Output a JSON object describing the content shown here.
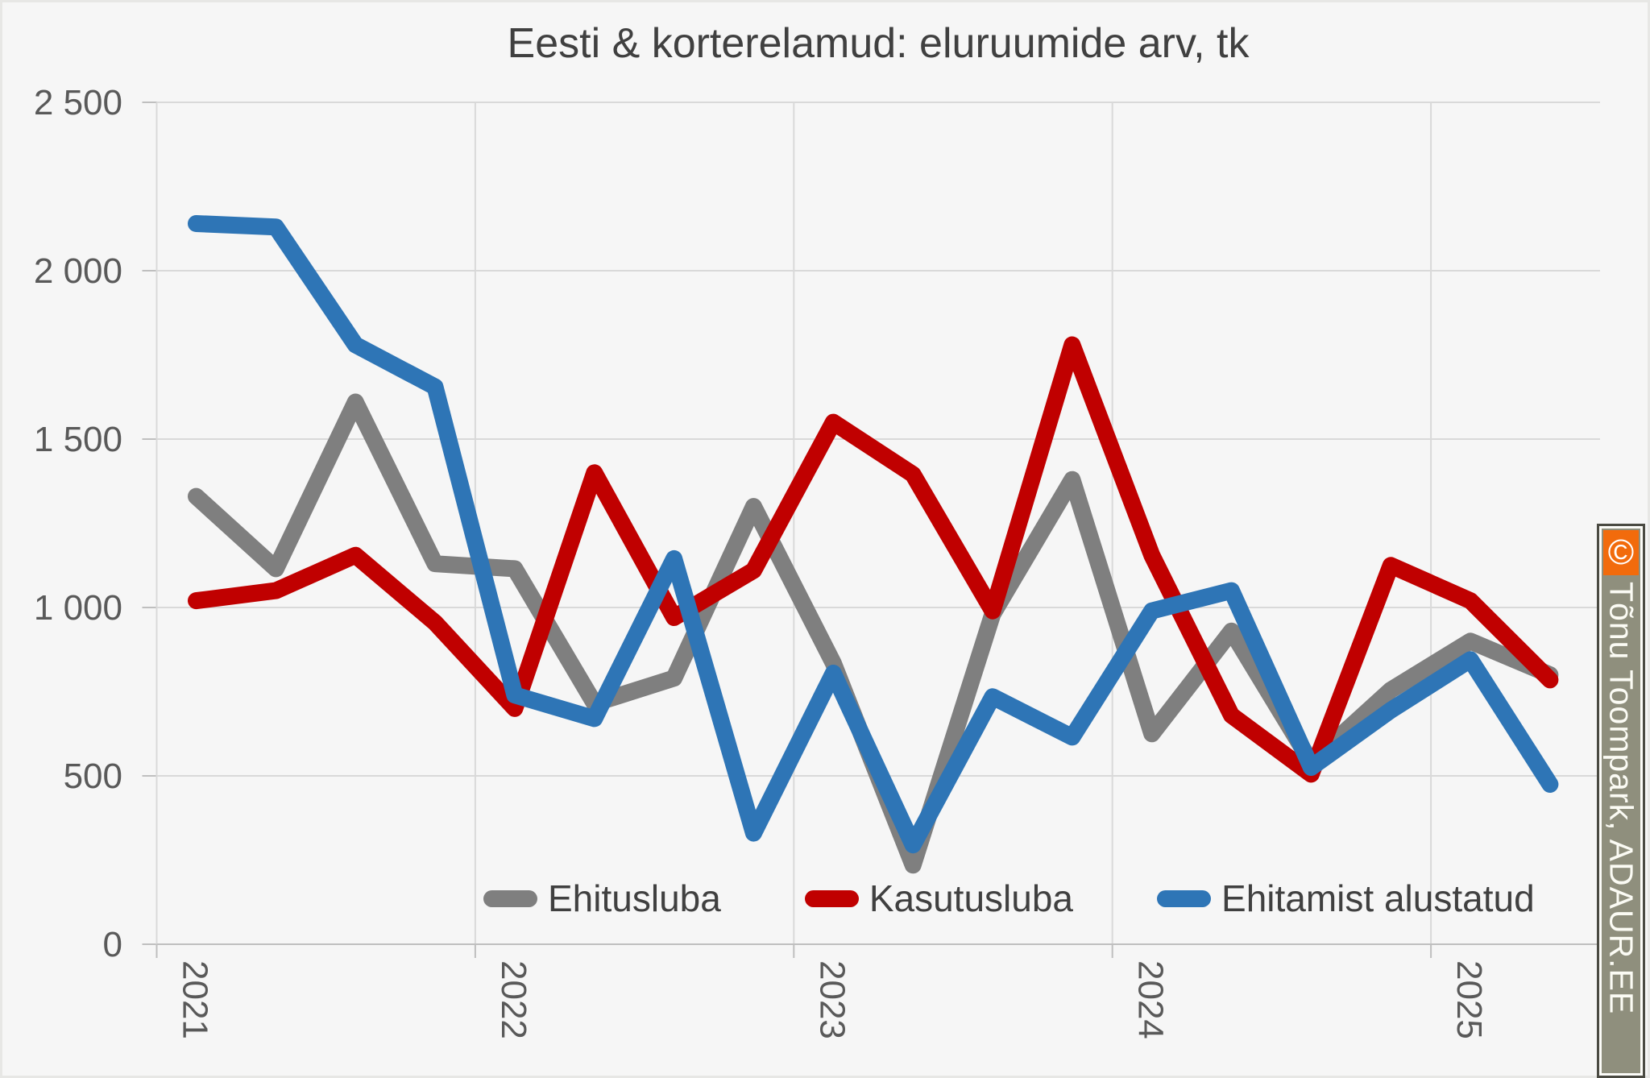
{
  "title": "Eesti & korterelamud: eluruumide arv, tk",
  "watermark": {
    "copyright": "©",
    "text": "Tõnu Toompark, ADAUR.EE",
    "orange_color": "#F26B0C",
    "strip_color": "#8F8F7D",
    "text_color": "#FBFBF4"
  },
  "chart_data": {
    "type": "line",
    "title": "Eesti & korterelamud: eluruumide arv, tk",
    "x_unit": "quarter",
    "categories": [
      "2021 Q1",
      "2021 Q2",
      "2021 Q3",
      "2021 Q4",
      "2022 Q1",
      "2022 Q2",
      "2022 Q3",
      "2022 Q4",
      "2023 Q1",
      "2023 Q2",
      "2023 Q3",
      "2023 Q4",
      "2024 Q1",
      "2024 Q2",
      "2024 Q3",
      "2024 Q4",
      "2025 Q1",
      "2025 Q2"
    ],
    "x_year_labels": [
      "2021",
      "2022",
      "2023",
      "2024",
      "2025"
    ],
    "series": [
      {
        "name": "Ehitusluba",
        "color": "#7F7F7F",
        "values": [
          1330,
          1115,
          1610,
          1130,
          1115,
          715,
          790,
          1300,
          835,
          235,
          980,
          1380,
          625,
          930,
          540,
          755,
          900,
          800
        ]
      },
      {
        "name": "Kasutusluba",
        "color": "#C00000",
        "values": [
          1020,
          1050,
          1155,
          955,
          700,
          1400,
          970,
          1110,
          1550,
          1395,
          990,
          1780,
          1155,
          680,
          505,
          1125,
          1020,
          785
        ]
      },
      {
        "name": "Ehitamist alustatud",
        "color": "#2E75B6",
        "values": [
          2140,
          2130,
          1780,
          1655,
          740,
          670,
          1145,
          330,
          805,
          295,
          735,
          615,
          990,
          1050,
          525,
          695,
          845,
          475
        ]
      }
    ],
    "ylim": [
      0,
      2500
    ],
    "y_ticks": [
      {
        "value": 0,
        "label": "0"
      },
      {
        "value": 500,
        "label": "500"
      },
      {
        "value": 1000,
        "label": "1 000"
      },
      {
        "value": 1500,
        "label": "1 500"
      },
      {
        "value": 2000,
        "label": "2 000"
      },
      {
        "value": 2500,
        "label": "2 500"
      }
    ],
    "grid": true,
    "legend_position": "bottom-inside",
    "styles": {
      "grid_color": "#D9D9D9",
      "axis_color": "#BFBFBF",
      "tick_text_color": "#595959",
      "title_color": "#404040",
      "background": "#F6F6F6",
      "line_width": 21
    }
  }
}
